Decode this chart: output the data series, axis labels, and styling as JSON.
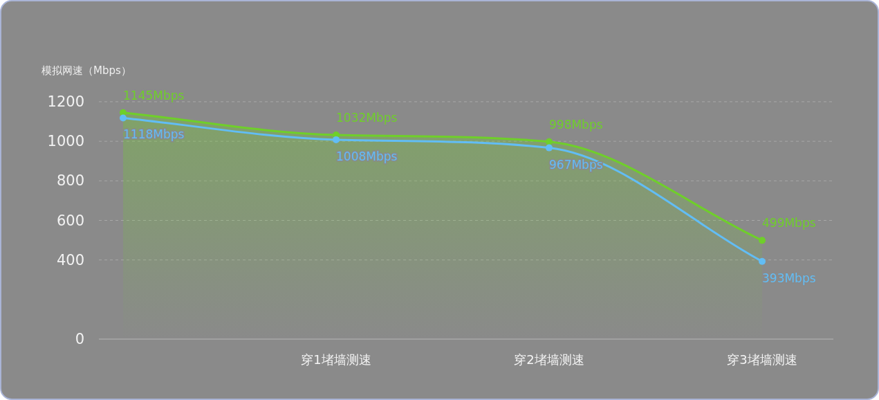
{
  "chart_data": {
    "type": "line",
    "ylabel": "模拟网速（Mbps）",
    "categories": [
      null,
      "穿1堵墙测速",
      "穿2堵墙测速",
      "穿3堵墙测速"
    ],
    "series": [
      {
        "type": "area",
        "color": "#6fcf2a",
        "values": [
          1145,
          1032,
          998,
          499
        ],
        "value_labels": [
          "1145Mbps",
          "1032Mbps",
          "998Mbps",
          "499Mbps"
        ]
      },
      {
        "color": "#62bdf5",
        "values": [
          1118,
          1008,
          967,
          393
        ],
        "value_labels": [
          "1118Mbps",
          "1008Mbps",
          "967Mbps",
          "393Mbps"
        ]
      }
    ],
    "ylim": [
      0,
      1200
    ],
    "yticks": [
      0,
      400,
      600,
      800,
      1000,
      1200
    ],
    "grid": "y",
    "marker": "circle",
    "line_style": "solid"
  }
}
